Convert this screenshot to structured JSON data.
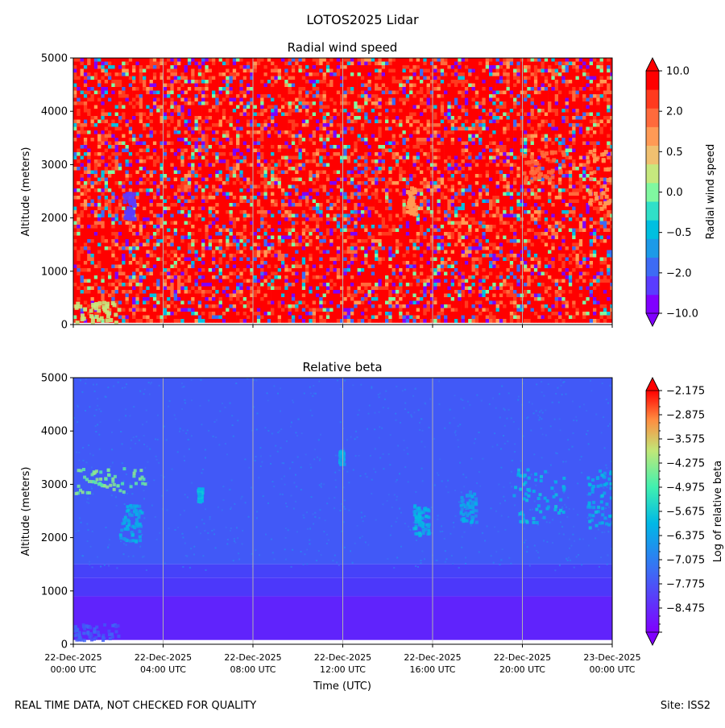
{
  "figure_title": "LOTOS2025 Lidar",
  "footer_left": "REAL TIME DATA, NOT CHECKED FOR QUALITY",
  "footer_right": "Site: ISS2",
  "colors": {
    "rainbow": [
      "#8000ff",
      "#4df3ff",
      "#80ffb4",
      "#ffb360",
      "#ff0000"
    ],
    "gridline": "#b0b0b0"
  },
  "chart_data": [
    {
      "type": "heatmap",
      "title": "Radial wind speed",
      "xlabel": "",
      "ylabel": "Altitude (meters)",
      "ylim": [
        0,
        5000
      ],
      "yticks": [
        "0",
        "1000",
        "2000",
        "3000",
        "4000",
        "5000"
      ],
      "xlim_hours": [
        0,
        24
      ],
      "xticks": [],
      "colorbar": {
        "label": "Radial wind speed",
        "tick_labels": [
          "10.0",
          "2.0",
          "0.5",
          "0.0",
          "−0.5",
          "−2.0",
          "−10.0"
        ],
        "levels": 13,
        "extend": "both"
      },
      "features": [
        {
          "t0": 2.2,
          "t1": 2.7,
          "z0": 1950,
          "z1": 2500,
          "level": 1,
          "desc": "blue patch"
        },
        {
          "t0": 20.0,
          "t1": 21.8,
          "z0": 2700,
          "z1": 3300,
          "level": 10,
          "desc": "orange cloud"
        },
        {
          "t0": 22.8,
          "t1": 24.0,
          "z0": 2200,
          "z1": 3300,
          "level": 9,
          "desc": "yellow cloud"
        },
        {
          "t0": 0.0,
          "t1": 2.0,
          "z0": 50,
          "z1": 450,
          "level": 7,
          "desc": "low-level green/yellow"
        },
        {
          "t0": 14.8,
          "t1": 15.2,
          "z0": 2100,
          "z1": 2600,
          "level": 9,
          "desc": "yellow streak"
        }
      ]
    },
    {
      "type": "heatmap",
      "title": "Relative beta",
      "xlabel": "Time (UTC)",
      "ylabel": "Altitude (meters)",
      "ylim": [
        0,
        5000
      ],
      "yticks": [
        "0",
        "1000",
        "2000",
        "3000",
        "4000",
        "5000"
      ],
      "xlim_hours": [
        0,
        24
      ],
      "xticks": [
        {
          "hour": 0,
          "line1": "22-Dec-2025",
          "line2": "00:00 UTC"
        },
        {
          "hour": 4,
          "line1": "22-Dec-2025",
          "line2": "04:00 UTC"
        },
        {
          "hour": 8,
          "line1": "22-Dec-2025",
          "line2": "08:00 UTC"
        },
        {
          "hour": 12,
          "line1": "22-Dec-2025",
          "line2": "12:00 UTC"
        },
        {
          "hour": 16,
          "line1": "22-Dec-2025",
          "line2": "16:00 UTC"
        },
        {
          "hour": 20,
          "line1": "22-Dec-2025",
          "line2": "20:00 UTC"
        },
        {
          "hour": 24,
          "line1": "23-Dec-2025",
          "line2": "00:00 UTC"
        }
      ],
      "colorbar": {
        "label": "Log of relative beta",
        "tick_labels": [
          "−2.175",
          "−2.875",
          "−3.575",
          "−4.275",
          "−4.975",
          "−5.675",
          "−6.375",
          "−7.075",
          "−7.775",
          "−8.475"
        ],
        "vmin": -9.175,
        "vmax": -2.175,
        "extend": "both"
      },
      "layers": [
        {
          "z0": 1500,
          "z1": 5000,
          "value": -7.4
        },
        {
          "z0": 1250,
          "z1": 1500,
          "value": -7.8
        },
        {
          "z0": 900,
          "z1": 1250,
          "value": -8.0
        },
        {
          "z0": 80,
          "z1": 900,
          "value": -8.45
        }
      ],
      "features": [
        {
          "t0": 0.0,
          "t1": 3.2,
          "z0": 2850,
          "z1": 3350,
          "value": -4.6,
          "desc": "aerosol layer"
        },
        {
          "t0": 2.0,
          "t1": 3.0,
          "z0": 1950,
          "z1": 2650,
          "value": -6.2
        },
        {
          "t0": 5.5,
          "t1": 5.7,
          "z0": 2700,
          "z1": 2950,
          "value": -6.0
        },
        {
          "t0": 11.8,
          "t1": 12.0,
          "z0": 3400,
          "z1": 3650,
          "value": -6.3
        },
        {
          "t0": 15.1,
          "t1": 15.8,
          "z0": 2050,
          "z1": 2650,
          "value": -6.1
        },
        {
          "t0": 17.2,
          "t1": 17.9,
          "z0": 2300,
          "z1": 2900,
          "value": -6.3
        },
        {
          "t0": 19.5,
          "t1": 21.8,
          "z0": 2300,
          "z1": 3300,
          "value": -6.0
        },
        {
          "t0": 22.8,
          "t1": 24.0,
          "z0": 2200,
          "z1": 3300,
          "value": -6.1
        },
        {
          "t0": 0.0,
          "t1": 2.0,
          "z0": 100,
          "z1": 400,
          "value": -7.3
        }
      ]
    }
  ]
}
